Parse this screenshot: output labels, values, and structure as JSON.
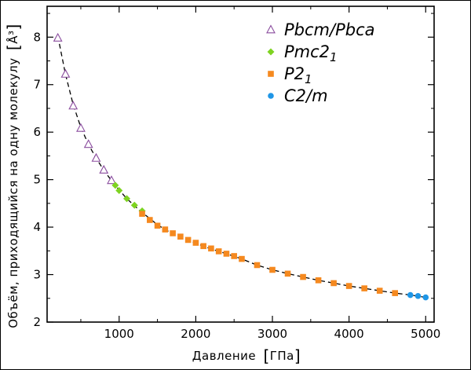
{
  "chart_data": {
    "type": "scatter",
    "xlabel": "Давление",
    "xunit": "ГПа",
    "ylabel": "Объём, приходящийся на одну молекулу",
    "yunit": "Å³",
    "xlim": [
      60,
      5110
    ],
    "ylim": [
      2,
      8.65
    ],
    "xticks": [
      1000,
      2000,
      3000,
      4000,
      5000
    ],
    "yticks": [
      2,
      3,
      4,
      5,
      6,
      7,
      8
    ],
    "xminor": [
      500,
      1500,
      2500,
      3500,
      4500
    ],
    "yminor": [
      2.5,
      3.5,
      4.5,
      5.5,
      6.5,
      7.5,
      8.5
    ],
    "legend_position": "top-right",
    "series": [
      {
        "name": "Pbcm/Pbca",
        "name_base": "Pbcm/Pbca",
        "name_sub": "",
        "marker": "triangle-open",
        "color": "#8a4c9e",
        "x": [
          200,
          300,
          400,
          500,
          600,
          700,
          800,
          900
        ],
        "y": [
          7.98,
          7.22,
          6.55,
          6.08,
          5.74,
          5.45,
          5.2,
          4.98
        ]
      },
      {
        "name": "Pmc2₁",
        "name_base": "Pmc2",
        "name_sub": "1",
        "marker": "diamond",
        "color": "#7ed321",
        "x": [
          950,
          1000,
          1100,
          1200,
          1300
        ],
        "y": [
          4.88,
          4.77,
          4.6,
          4.46,
          4.34
        ]
      },
      {
        "name": "P2₁",
        "name_base": "P2",
        "name_sub": "1",
        "marker": "square",
        "color": "#f5891f",
        "x": [
          1300,
          1400,
          1500,
          1600,
          1700,
          1800,
          1900,
          2000,
          2100,
          2200,
          2300,
          2400,
          2500,
          2600,
          2800,
          3000,
          3200,
          3400,
          3600,
          3800,
          4000,
          4200,
          4400,
          4600
        ],
        "y": [
          4.28,
          4.15,
          4.03,
          3.95,
          3.87,
          3.8,
          3.73,
          3.67,
          3.6,
          3.55,
          3.49,
          3.44,
          3.39,
          3.33,
          3.2,
          3.1,
          3.02,
          2.95,
          2.88,
          2.82,
          2.76,
          2.71,
          2.66,
          2.61
        ]
      },
      {
        "name": "C2/m",
        "name_base": "C2/m",
        "name_sub": "",
        "marker": "circle",
        "color": "#1f96e6",
        "x": [
          4800,
          4900,
          5000
        ],
        "y": [
          2.57,
          2.55,
          2.52
        ]
      }
    ],
    "fit_curve": {
      "style": "dashed",
      "color": "#000000",
      "x": [
        200,
        300,
        400,
        500,
        600,
        700,
        800,
        900,
        1000,
        1100,
        1200,
        1300,
        1400,
        1500,
        1600,
        1700,
        1800,
        1900,
        2000,
        2200,
        2400,
        2600,
        2800,
        3000,
        3200,
        3400,
        3600,
        3800,
        4000,
        4200,
        4400,
        4600,
        4800,
        5000
      ],
      "y": [
        8.02,
        7.22,
        6.58,
        6.1,
        5.74,
        5.45,
        5.2,
        4.98,
        4.78,
        4.6,
        4.45,
        4.31,
        4.18,
        4.05,
        3.95,
        3.86,
        3.79,
        3.72,
        3.66,
        3.54,
        3.44,
        3.33,
        3.2,
        3.1,
        3.02,
        2.95,
        2.88,
        2.82,
        2.76,
        2.71,
        2.66,
        2.61,
        2.57,
        2.52
      ]
    }
  }
}
